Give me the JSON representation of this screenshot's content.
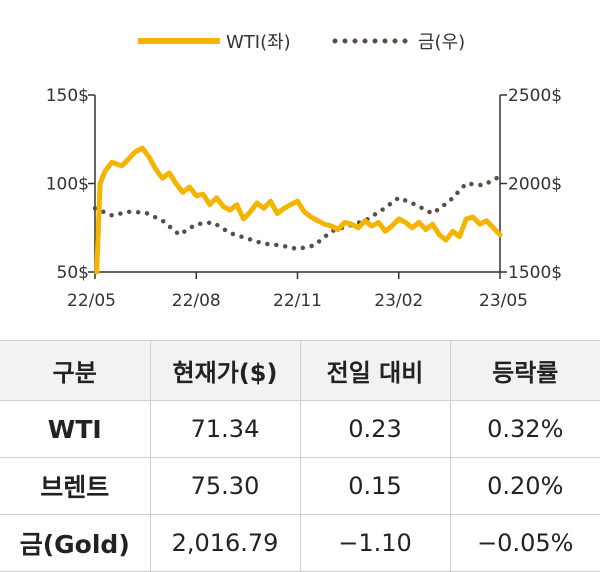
{
  "chart_data": {
    "type": "line",
    "legend": {
      "placement": "top-center"
    },
    "left_axis": {
      "ticks": [
        "150$",
        "100$",
        "50$"
      ],
      "ylim": [
        50,
        150
      ]
    },
    "right_axis": {
      "ticks": [
        "2500$",
        "2000$",
        "1500$"
      ],
      "ylim": [
        1500,
        2500
      ]
    },
    "x_ticks": [
      "22/05",
      "22/08",
      "22/11",
      "23/02",
      "23/05"
    ],
    "x_tick_values": [
      0,
      3,
      6,
      9,
      12
    ],
    "xlim": [
      0,
      12
    ],
    "series": [
      {
        "name": "WTI(좌)",
        "axis": "left",
        "style": "solid",
        "color": "#f5b400",
        "x": [
          0.05,
          0.15,
          0.3,
          0.5,
          0.8,
          1.0,
          1.2,
          1.4,
          1.6,
          1.8,
          2.0,
          2.2,
          2.4,
          2.6,
          2.8,
          3.0,
          3.2,
          3.4,
          3.6,
          3.8,
          4.0,
          4.2,
          4.4,
          4.6,
          4.8,
          5.0,
          5.2,
          5.4,
          5.6,
          5.8,
          6.0,
          6.2,
          6.4,
          6.6,
          6.8,
          7.0,
          7.2,
          7.4,
          7.6,
          7.8,
          8.0,
          8.2,
          8.4,
          8.6,
          8.8,
          9.0,
          9.2,
          9.4,
          9.6,
          9.8,
          10.0,
          10.2,
          10.4,
          10.6,
          10.8,
          11.0,
          11.2,
          11.4,
          11.6,
          11.8,
          12.0
        ],
        "values": [
          50,
          100,
          107,
          112,
          110,
          114,
          118,
          120,
          115,
          108,
          103,
          106,
          100,
          95,
          98,
          93,
          94,
          88,
          92,
          87,
          85,
          88,
          80,
          84,
          89,
          86,
          90,
          83,
          86,
          88,
          90,
          84,
          81,
          79,
          77,
          76,
          74,
          78,
          77,
          75,
          79,
          76,
          78,
          73,
          76,
          80,
          78,
          75,
          78,
          74,
          77,
          71,
          68,
          73,
          70,
          80,
          81,
          77,
          79,
          75,
          71
        ]
      },
      {
        "name": "금(우)",
        "axis": "right",
        "style": "dotted",
        "color": "#5a4e44",
        "x": [
          0.0,
          0.5,
          1.0,
          1.5,
          2.0,
          2.5,
          3.0,
          3.5,
          4.0,
          4.5,
          5.0,
          5.5,
          6.0,
          6.5,
          7.0,
          7.5,
          8.0,
          8.5,
          9.0,
          9.5,
          10.0,
          10.5,
          11.0,
          11.5,
          12.0
        ],
        "values": [
          1860,
          1820,
          1840,
          1835,
          1790,
          1710,
          1770,
          1780,
          1720,
          1690,
          1660,
          1650,
          1630,
          1650,
          1730,
          1760,
          1790,
          1850,
          1920,
          1880,
          1830,
          1900,
          2000,
          1990,
          2040
        ]
      }
    ]
  },
  "table": {
    "headers": [
      "구분",
      "현재가($)",
      "전일 대비",
      "등락률"
    ],
    "rows": [
      [
        "WTI",
        "71.34",
        "0.23",
        "0.32%"
      ],
      [
        "브렌트",
        "75.30",
        "0.15",
        "0.20%"
      ],
      [
        "금(Gold)",
        "2,016.79",
        "−1.10",
        "−0.05%"
      ]
    ]
  }
}
